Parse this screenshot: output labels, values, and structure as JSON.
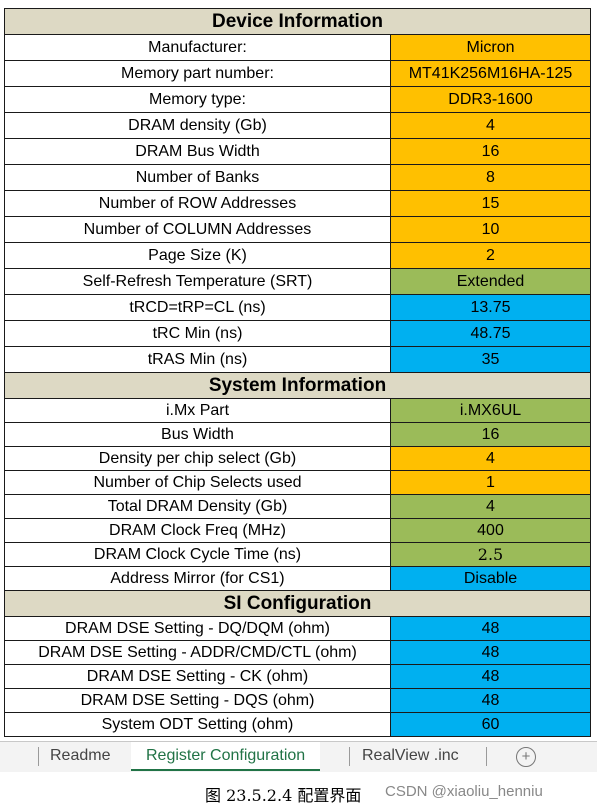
{
  "device": {
    "title": "Device Information",
    "rows": [
      {
        "label": "Manufacturer:",
        "value": "Micron",
        "color": "#ffc000"
      },
      {
        "label": "Memory part number:",
        "value": "MT41K256M16HA-125",
        "color": "#ffc000"
      },
      {
        "label": "Memory type:",
        "value": "DDR3-1600",
        "color": "#ffc000"
      },
      {
        "label": "DRAM density (Gb)",
        "value": "4",
        "color": "#ffc000"
      },
      {
        "label": "DRAM Bus Width",
        "value": "16",
        "color": "#ffc000"
      },
      {
        "label": "Number of Banks",
        "value": "8",
        "color": "#ffc000"
      },
      {
        "label": "Number of ROW Addresses",
        "value": "15",
        "color": "#ffc000"
      },
      {
        "label": "Number of COLUMN Addresses",
        "value": "10",
        "color": "#ffc000"
      },
      {
        "label": "Page Size (K)",
        "value": "2",
        "color": "#ffc000"
      },
      {
        "label": "Self-Refresh Temperature (SRT)",
        "value": "Extended",
        "color": "#9bbb59"
      },
      {
        "label": "tRCD=tRP=CL (ns)",
        "value": "13.75",
        "color": "#00b0f0"
      },
      {
        "label": "tRC Min (ns)",
        "value": "48.75",
        "color": "#00b0f0"
      },
      {
        "label": "tRAS Min (ns)",
        "value": "35",
        "color": "#00b0f0"
      }
    ]
  },
  "system": {
    "title": "System Information",
    "rows": [
      {
        "label": "i.Mx Part",
        "value": "i.MX6UL",
        "color": "#9bbb59"
      },
      {
        "label": "Bus Width",
        "value": "16",
        "color": "#9bbb59"
      },
      {
        "label": "Density per chip select (Gb)",
        "value": "4",
        "color": "#ffc000"
      },
      {
        "label": "Number of Chip Selects used",
        "value": "1",
        "color": "#ffc000"
      },
      {
        "label": "Total DRAM Density (Gb)",
        "value": "4",
        "color": "#9bbb59"
      },
      {
        "label": "DRAM Clock Freq (MHz)",
        "value": "400",
        "color": "#9bbb59"
      },
      {
        "label": "DRAM Clock Cycle Time (ns)",
        "value": "2.5",
        "color": "#9bbb59"
      },
      {
        "label": "Address Mirror (for CS1)",
        "value": "Disable",
        "color": "#00b0f0"
      }
    ]
  },
  "si": {
    "title": "SI Configuration",
    "rows": [
      {
        "label": "DRAM DSE Setting - DQ/DQM (ohm)",
        "value": "48",
        "color": "#00b0f0"
      },
      {
        "label": "DRAM DSE Setting - ADDR/CMD/CTL (ohm)",
        "value": "48",
        "color": "#00b0f0"
      },
      {
        "label": "DRAM DSE Setting - CK (ohm)",
        "value": "48",
        "color": "#00b0f0"
      },
      {
        "label": "DRAM DSE Setting - DQS (ohm)",
        "value": "48",
        "color": "#00b0f0"
      },
      {
        "label": "System ODT Setting (ohm)",
        "value": "60",
        "color": "#00b0f0"
      }
    ]
  },
  "tabs": [
    "Readme",
    "Register Configuration",
    "RealView .inc"
  ],
  "active_tab": "Register Configuration",
  "caption": "图 23.5.2.4 配置界面",
  "watermark": "CSDN @xiaoliu_henniu",
  "icons": {
    "add_sheet": "plus-circle-icon"
  }
}
